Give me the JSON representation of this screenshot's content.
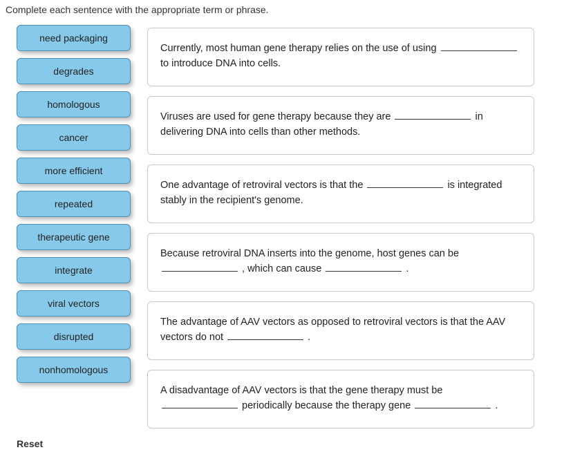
{
  "instruction": "Complete each sentence with the appropriate term or phrase.",
  "terms": [
    {
      "label": "need packaging"
    },
    {
      "label": "degrades"
    },
    {
      "label": "homologous"
    },
    {
      "label": "cancer"
    },
    {
      "label": "more efficient"
    },
    {
      "label": "repeated"
    },
    {
      "label": "therapeutic gene"
    },
    {
      "label": "integrate"
    },
    {
      "label": "viral vectors"
    },
    {
      "label": "disrupted"
    },
    {
      "label": "nonhomologous"
    }
  ],
  "sentences": [
    {
      "pre": "Currently, most human gene therapy relies on the use of using ",
      "mid1": " to introduce DNA into cells."
    },
    {
      "pre": "Viruses are used for gene therapy because they are ",
      "mid1": " in delivering DNA into cells than other methods."
    },
    {
      "pre": "One advantage of retroviral vectors is that the ",
      "mid1": " is integrated stably in the recipient's genome."
    },
    {
      "pre": "Because retroviral DNA inserts into the genome, host genes can be ",
      "mid1": " , which can cause ",
      "mid2": " ."
    },
    {
      "pre": "The advantage of AAV vectors as opposed to retroviral vectors is that the AAV vectors do not ",
      "mid1": " ."
    },
    {
      "pre": "A disadvantage of AAV vectors is that the gene therapy must be ",
      "mid1": " periodically because the therapy gene ",
      "mid2": " ."
    }
  ],
  "reset_label": "Reset",
  "colors": {
    "chip_bg": "#87c9ea",
    "chip_border": "#528fab",
    "box_border": "#c9c9c9",
    "text": "#333333"
  }
}
